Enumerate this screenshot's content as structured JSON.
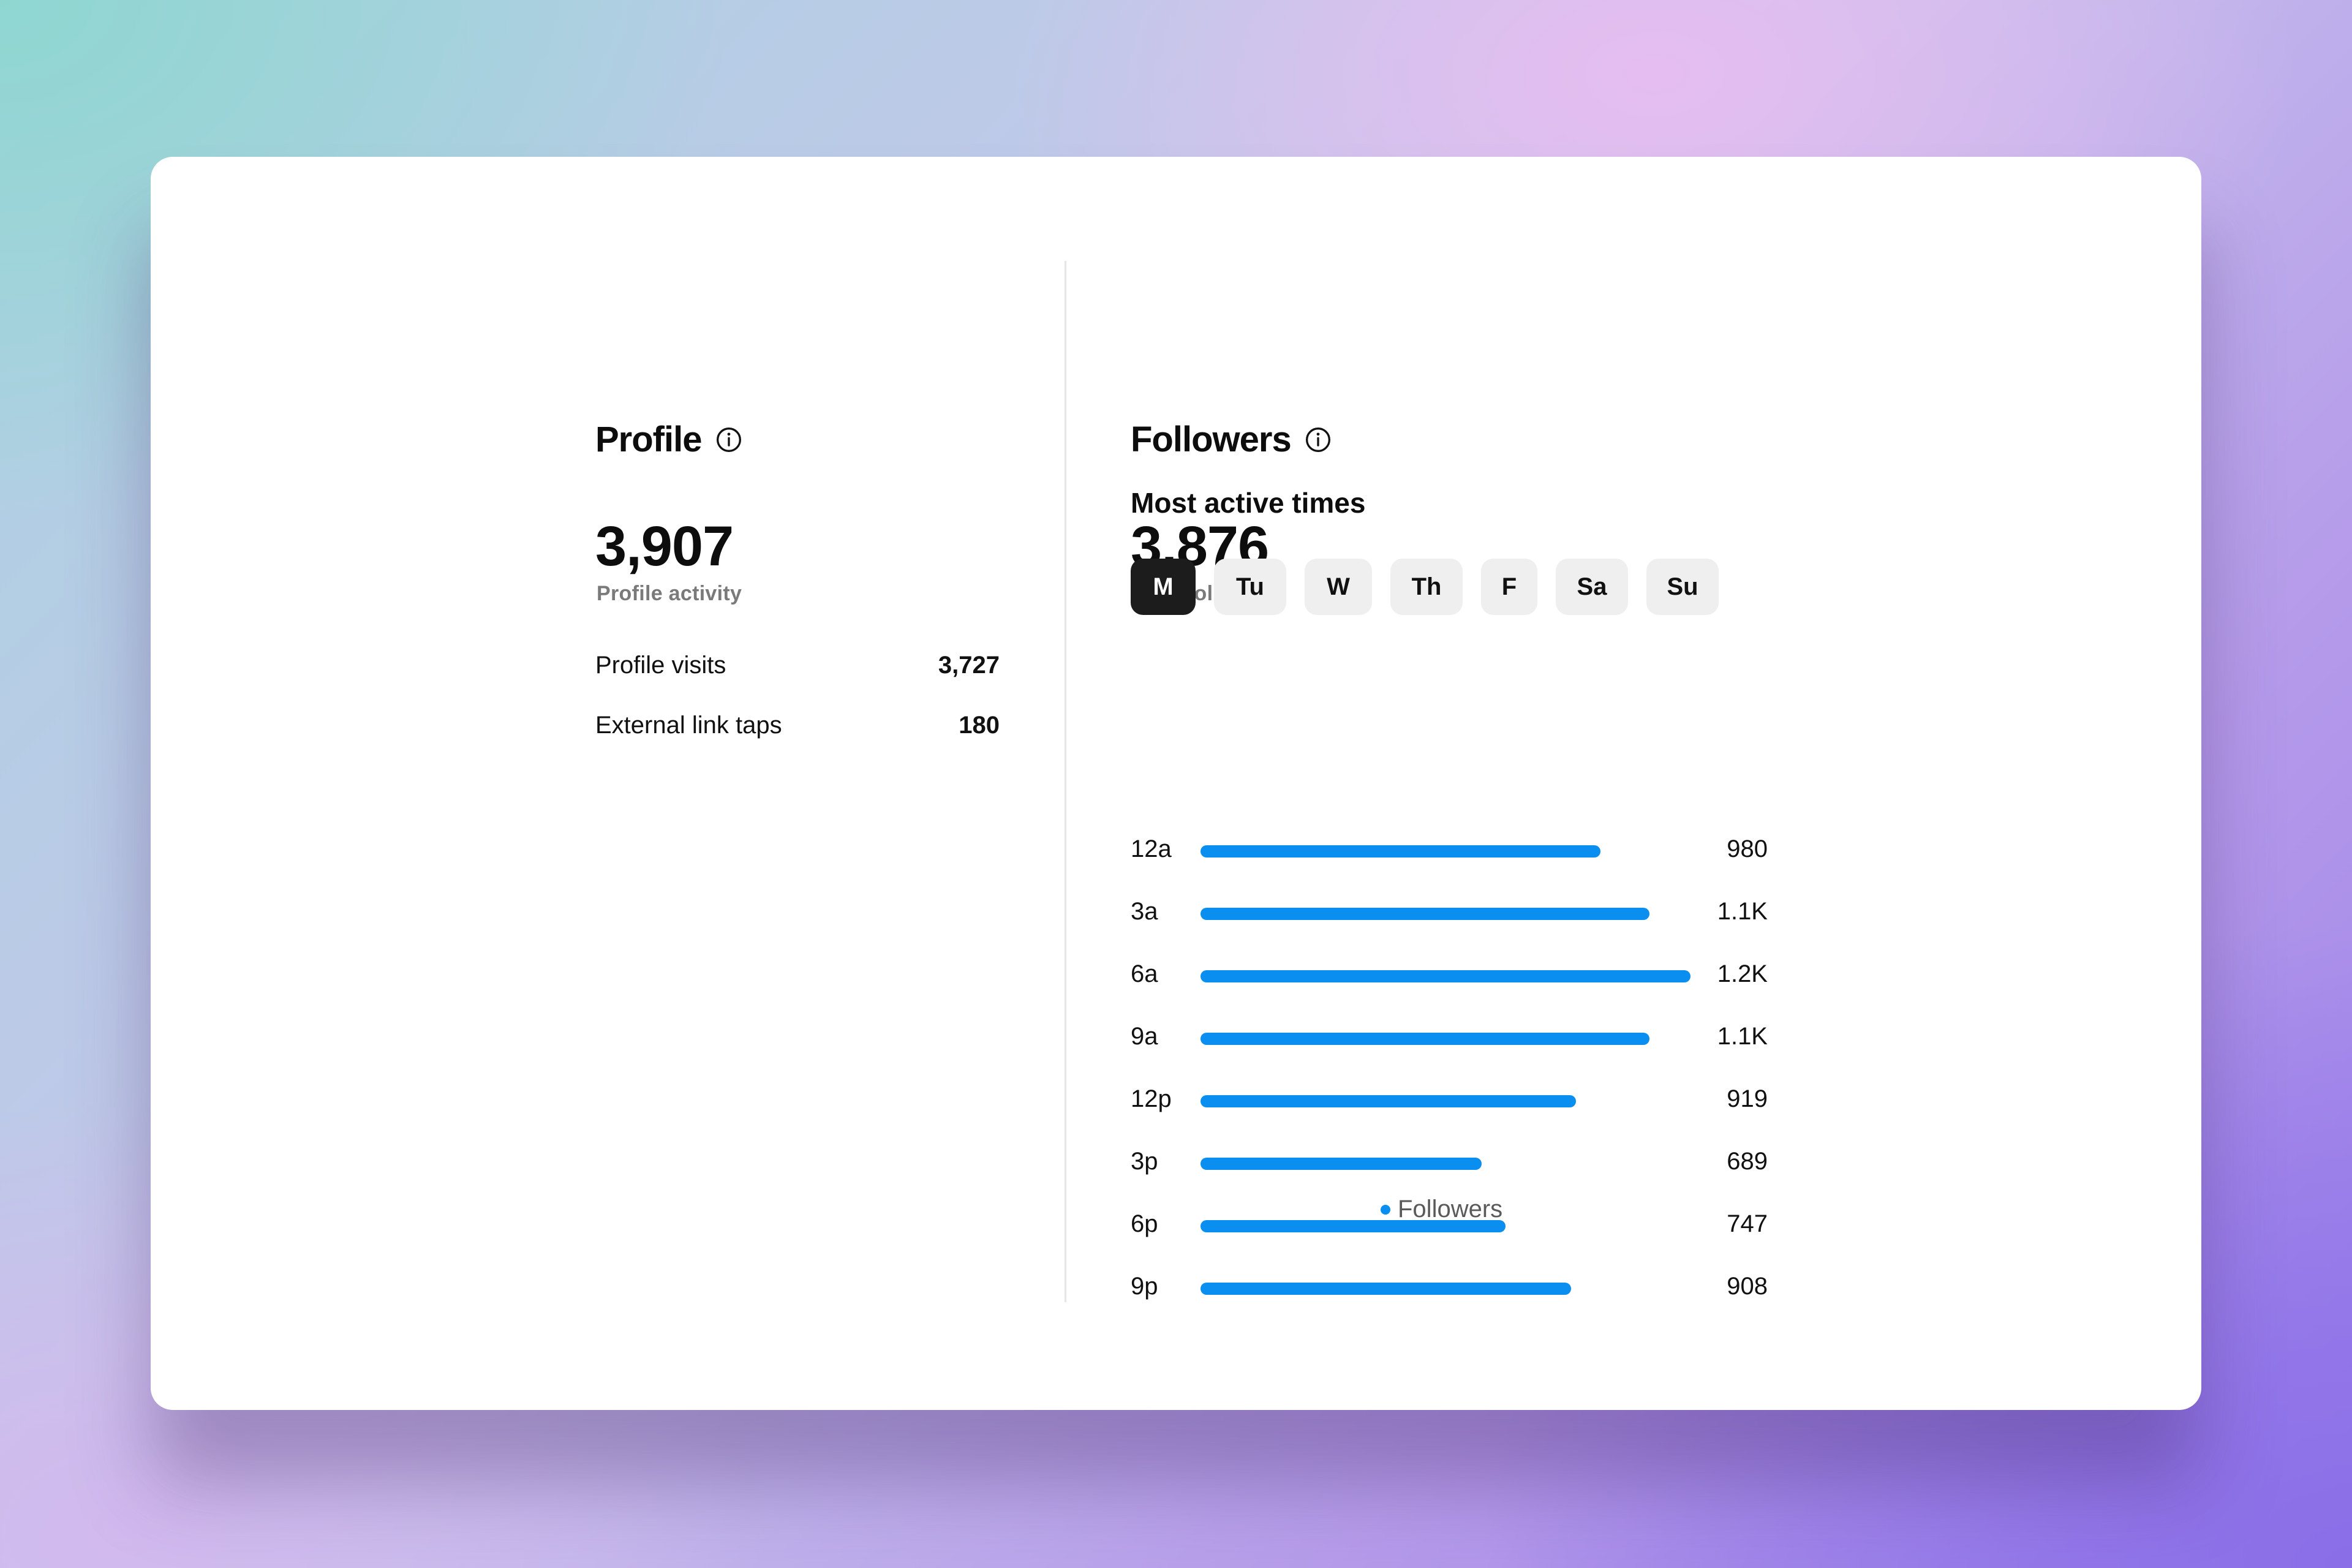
{
  "profile": {
    "title": "Profile",
    "info_icon": "info-icon",
    "activity_value": "3,907",
    "activity_label": "Profile activity",
    "stats": [
      {
        "label": "Profile visits",
        "value": "3,727"
      },
      {
        "label": "External link taps",
        "value": "180"
      }
    ]
  },
  "followers": {
    "title": "Followers",
    "info_icon": "info-icon",
    "total_value": "3,876",
    "total_label": "Total followers",
    "most_active_title": "Most active times",
    "days": [
      {
        "label": "M",
        "active": true
      },
      {
        "label": "Tu",
        "active": false
      },
      {
        "label": "W",
        "active": false
      },
      {
        "label": "Th",
        "active": false
      },
      {
        "label": "F",
        "active": false
      },
      {
        "label": "Sa",
        "active": false
      },
      {
        "label": "Su",
        "active": false
      }
    ],
    "legend_label": "Followers"
  },
  "colors": {
    "bar": "#0a8ff0",
    "active_day_bg": "#1c1c1c",
    "inactive_day_bg": "#efefef"
  },
  "chart_data": {
    "type": "bar",
    "orientation": "horizontal",
    "categories": [
      "12a",
      "3a",
      "6a",
      "9a",
      "12p",
      "3p",
      "6p",
      "9p"
    ],
    "series": [
      {
        "name": "Followers",
        "values": [
          980,
          1100,
          1200,
          1100,
          919,
          689,
          747,
          908
        ]
      }
    ],
    "value_labels": [
      "980",
      "1.1K",
      "1.2K",
      "1.1K",
      "919",
      "689",
      "747",
      "908"
    ],
    "xlim": [
      0,
      1200
    ],
    "legend": "bottom-center",
    "grid": false
  }
}
